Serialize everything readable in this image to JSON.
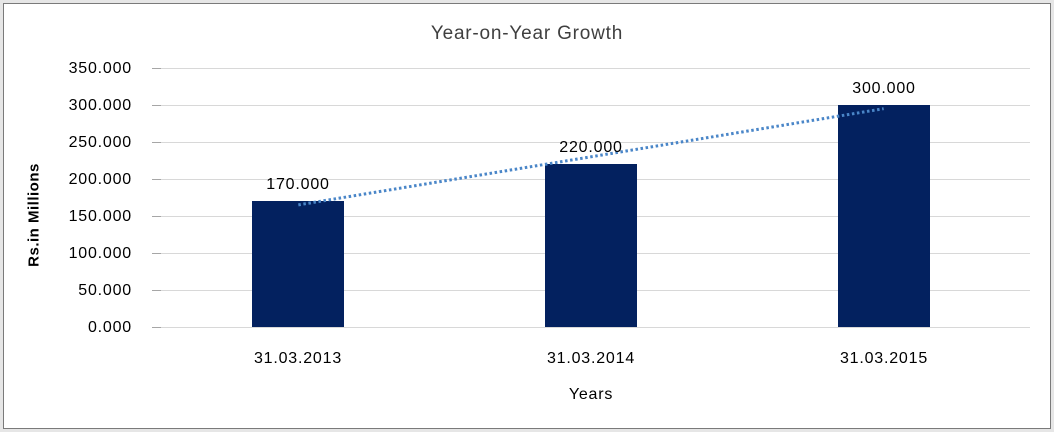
{
  "window": {
    "background": "#e6e6e6",
    "border_color": "#7a7a7a",
    "chart_background": "#ffffff"
  },
  "chart_data": {
    "type": "bar",
    "title": "Year-on-Year Growth",
    "xlabel": "Years",
    "ylabel": "Rs.in Millions",
    "categories": [
      "31.03.2013",
      "31.03.2014",
      "31.03.2015"
    ],
    "values": [
      170,
      220,
      300
    ],
    "value_labels": [
      "170.000",
      "220.000",
      "300.000"
    ],
    "ylim": [
      0,
      350
    ],
    "y_tick_values": [
      0,
      50,
      100,
      150,
      200,
      250,
      300,
      350
    ],
    "y_tick_labels": [
      "0.000",
      "50.000",
      "100.000",
      "150.000",
      "200.000",
      "250.000",
      "300.000",
      "350.000"
    ],
    "grid": true,
    "legend": "none",
    "bar_color": "#03215f",
    "gridline_color": "#d8d8d8",
    "tick_color": "#a6a6a6",
    "title_color": "#3f3f3f",
    "text_color": "#000000",
    "trendline": {
      "type": "linear",
      "style": "dotted",
      "color": "#4a86c8",
      "y_start": 165,
      "y_end": 295
    }
  }
}
